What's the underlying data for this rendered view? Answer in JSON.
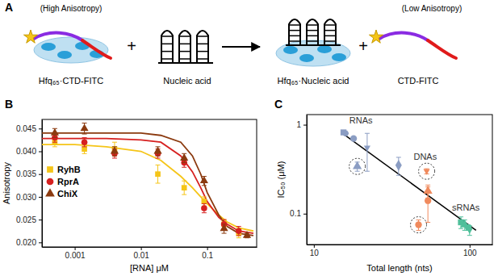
{
  "chart_data": [
    {
      "type": "diagram",
      "title": "A",
      "annotations": [
        "(High Anisotropy)",
        "Hfq₆₅·CTD-FITC",
        "+",
        "Nucleic acid",
        "Hfq₆₅·Nucleic acid",
        "+",
        "CTD-FITC",
        "(Low Anisotropy)"
      ]
    },
    {
      "type": "scatter",
      "title": "B",
      "x_label": "[RNA] μM",
      "y_label": "Anisotropy",
      "log": "x",
      "legend": "left",
      "xlim": [
        0.00032,
        0.56
      ],
      "xticks": [
        0.001,
        0.01,
        0.1
      ],
      "ylim": [
        0.019,
        0.047
      ],
      "yticks": [
        {
          "value": 0.02,
          "label": "0.020"
        },
        0.025,
        {
          "value": 0.03,
          "label": "0.030"
        },
        0.035,
        {
          "value": 0.04,
          "label": "0.040"
        },
        0.045
      ],
      "series": [
        {
          "name": "RyhB",
          "color": "#f5c518",
          "marker": "square",
          "x": [
            0.0005,
            0.0014,
            0.004,
            0.018,
            0.045,
            0.09,
            0.18,
            0.3
          ],
          "values": [
            0.042,
            0.0405,
            0.0405,
            0.035,
            0.032,
            0.029,
            0.024,
            0.022
          ],
          "errors": [
            0.001,
            0.001,
            0.0015,
            0.002,
            0.0015,
            0.001,
            0.001,
            0.001
          ],
          "fit": {
            "x": [
              0.00032,
              0.001,
              0.003,
              0.01,
              0.02,
              0.04,
              0.06,
              0.08,
              0.1,
              0.15,
              0.2,
              0.3,
              0.5
            ],
            "values": [
              0.0415,
              0.0415,
              0.041,
              0.04,
              0.038,
              0.0345,
              0.032,
              0.03,
              0.0285,
              0.026,
              0.0245,
              0.0232,
              0.0225
            ]
          }
        },
        {
          "name": "RprA",
          "color": "#d62020",
          "marker": "circle",
          "x": [
            0.0005,
            0.0014,
            0.004,
            0.018,
            0.045,
            0.09,
            0.18,
            0.3
          ],
          "values": [
            0.043,
            0.042,
            0.0395,
            0.0395,
            0.0375,
            0.0275,
            0.024,
            0.0225
          ],
          "errors": [
            0.001,
            0.001,
            0.001,
            0.001,
            0.001,
            0.001,
            0.001,
            0.001
          ],
          "fit": {
            "x": [
              0.00032,
              0.001,
              0.003,
              0.01,
              0.02,
              0.04,
              0.06,
              0.08,
              0.1,
              0.15,
              0.2,
              0.3,
              0.5
            ],
            "values": [
              0.0428,
              0.0428,
              0.0428,
              0.0425,
              0.042,
              0.039,
              0.0355,
              0.032,
              0.029,
              0.0255,
              0.024,
              0.0225,
              0.022
            ]
          }
        },
        {
          "name": "ChiX",
          "color": "#8b3a0f",
          "marker": "triangle",
          "x": [
            0.0005,
            0.0014,
            0.004,
            0.018,
            0.045,
            0.09,
            0.18,
            0.4
          ],
          "values": [
            0.044,
            0.045,
            0.04,
            0.04,
            0.0385,
            0.0335,
            0.023,
            0.0215
          ],
          "errors": [
            0.001,
            0.0012,
            0.001,
            0.001,
            0.001,
            0.001,
            0.001,
            0.0005
          ],
          "fit": {
            "x": [
              0.00032,
              0.001,
              0.003,
              0.01,
              0.02,
              0.04,
              0.06,
              0.08,
              0.1,
              0.15,
              0.2,
              0.3,
              0.5
            ],
            "values": [
              0.044,
              0.044,
              0.044,
              0.044,
              0.0435,
              0.042,
              0.039,
              0.035,
              0.031,
              0.026,
              0.0235,
              0.022,
              0.0215
            ]
          }
        }
      ]
    },
    {
      "type": "scatter",
      "title": "C",
      "x_label": "Total length (nts)",
      "y_label": "IC₅₀ (μM)",
      "log": true,
      "xlim": [
        9,
        140
      ],
      "xticks": [
        10,
        100
      ],
      "ylim": [
        0.045,
        1.3
      ],
      "yticks": [
        0.1,
        1
      ],
      "series": [
        {
          "name": "RNAs",
          "color": "#8b9dc3",
          "x": [
            15.5,
            16,
            18,
            19,
            22,
            35
          ],
          "values": [
            0.82,
            0.8,
            0.7,
            0.34,
            0.55,
            0.35
          ],
          "errors": [
            0.04,
            0.03,
            0,
            0.04,
            0.25,
            0.08
          ],
          "circled": [
            false,
            false,
            false,
            true,
            false,
            false
          ]
        },
        {
          "name": "DNAs",
          "color": "#f08a5d",
          "x": [
            47,
            53,
            54,
            54
          ],
          "values": [
            0.075,
            0.3,
            0.18,
            0.14
          ],
          "errors": [
            0.01,
            0.02,
            0.03,
            0.06
          ],
          "circled": [
            true,
            true,
            false,
            false
          ]
        },
        {
          "name": "sRNAs",
          "color": "#4fbf9a",
          "x": [
            88,
            93,
            100,
            98
          ],
          "values": [
            0.08,
            0.075,
            0.065,
            0.07
          ],
          "errors": [
            0.012,
            0.01,
            0.008,
            0.005
          ],
          "circled": [
            false,
            false,
            false,
            false
          ]
        }
      ],
      "fit": {
        "x": [
          15,
          110
        ],
        "values": [
          0.82,
          0.065
        ]
      }
    }
  ]
}
